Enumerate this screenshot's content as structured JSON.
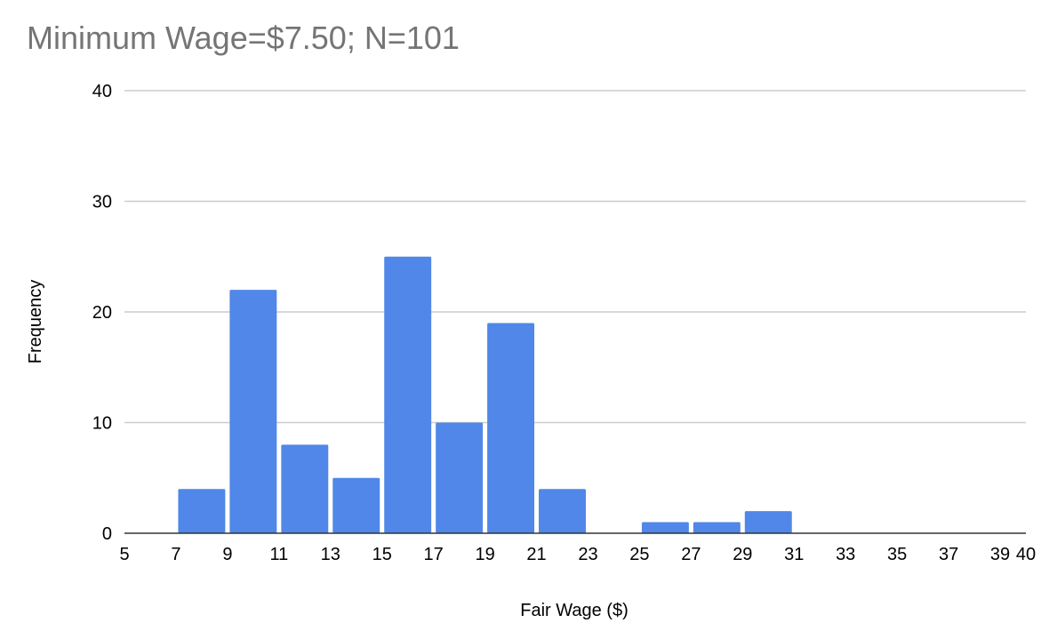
{
  "chart_data": {
    "type": "bar",
    "title": "Minimum Wage=$7.50; N=101",
    "xlabel": "Fair Wage ($)",
    "ylabel": "Frequency",
    "xlim": [
      5,
      40
    ],
    "ylim": [
      0,
      40
    ],
    "x_ticks": [
      "5",
      "7",
      "9",
      "11",
      "13",
      "15",
      "17",
      "19",
      "21",
      "23",
      "25",
      "27",
      "29",
      "31",
      "33",
      "35",
      "37",
      "39",
      "40"
    ],
    "y_ticks": [
      "0",
      "10",
      "20",
      "30",
      "40"
    ],
    "grid": true,
    "legend": "none",
    "color": "#5087e8",
    "bins": [
      {
        "start": 7,
        "end": 9,
        "value": 4
      },
      {
        "start": 9,
        "end": 11,
        "value": 22
      },
      {
        "start": 11,
        "end": 13,
        "value": 8
      },
      {
        "start": 13,
        "end": 15,
        "value": 5
      },
      {
        "start": 15,
        "end": 17,
        "value": 25
      },
      {
        "start": 17,
        "end": 19,
        "value": 10
      },
      {
        "start": 19,
        "end": 21,
        "value": 19
      },
      {
        "start": 21,
        "end": 23,
        "value": 4
      },
      {
        "start": 23,
        "end": 25,
        "value": 0
      },
      {
        "start": 25,
        "end": 27,
        "value": 1
      },
      {
        "start": 27,
        "end": 29,
        "value": 1
      },
      {
        "start": 29,
        "end": 31,
        "value": 2
      },
      {
        "start": 31,
        "end": 33,
        "value": 0
      },
      {
        "start": 33,
        "end": 35,
        "value": 0
      },
      {
        "start": 35,
        "end": 37,
        "value": 0
      },
      {
        "start": 37,
        "end": 39,
        "value": 0
      },
      {
        "start": 39,
        "end": 40,
        "value": 0
      }
    ]
  }
}
